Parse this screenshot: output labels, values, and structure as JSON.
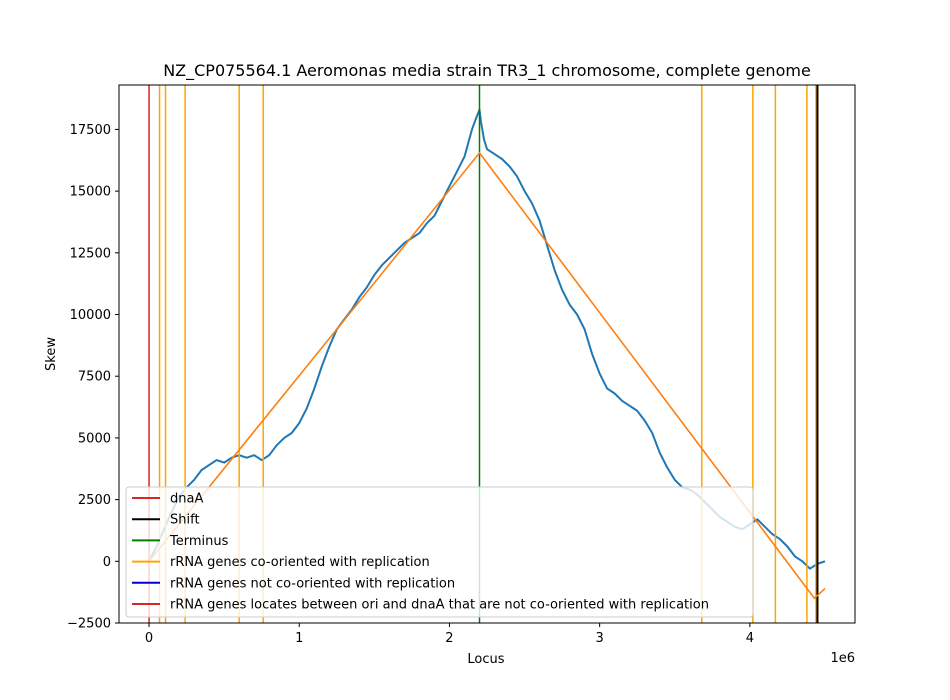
{
  "chart_data": {
    "type": "line",
    "title": "NZ_CP075564.1 Aeromonas media strain TR3_1 chromosome, complete genome",
    "xlabel": "Locus",
    "ylabel": "Skew",
    "x_offset_label": "1e6",
    "xlim": [
      -0.2,
      4.7
    ],
    "ylim": [
      -2500,
      19300
    ],
    "x_ticks": [
      0,
      1,
      2,
      3,
      4
    ],
    "x_tick_labels": [
      "0",
      "1",
      "2",
      "3",
      "4"
    ],
    "y_ticks": [
      -2500,
      0,
      2500,
      5000,
      7500,
      10000,
      12500,
      15000,
      17500
    ],
    "y_tick_labels": [
      "−2500",
      "0",
      "2500",
      "5000",
      "7500",
      "10000",
      "12500",
      "15000",
      "17500"
    ],
    "grid": false,
    "legend_position": "lower-left",
    "skew_series": {
      "color": "#1f77b4",
      "x": [
        0.0,
        0.05,
        0.1,
        0.15,
        0.2,
        0.25,
        0.3,
        0.35,
        0.4,
        0.45,
        0.5,
        0.55,
        0.6,
        0.65,
        0.7,
        0.75,
        0.8,
        0.85,
        0.9,
        0.95,
        1.0,
        1.05,
        1.1,
        1.15,
        1.2,
        1.25,
        1.3,
        1.35,
        1.4,
        1.45,
        1.5,
        1.55,
        1.6,
        1.65,
        1.7,
        1.75,
        1.8,
        1.85,
        1.9,
        1.95,
        2.0,
        2.05,
        2.1,
        2.15,
        2.18,
        2.2,
        2.21,
        2.23,
        2.25,
        2.3,
        2.35,
        2.4,
        2.45,
        2.5,
        2.55,
        2.6,
        2.65,
        2.7,
        2.75,
        2.8,
        2.85,
        2.9,
        2.95,
        3.0,
        3.05,
        3.1,
        3.15,
        3.2,
        3.25,
        3.3,
        3.35,
        3.4,
        3.45,
        3.5,
        3.55,
        3.6,
        3.65,
        3.7,
        3.75,
        3.8,
        3.85,
        3.9,
        3.95,
        4.0,
        4.05,
        4.1,
        4.15,
        4.2,
        4.25,
        4.3,
        4.35,
        4.4,
        4.45,
        4.5
      ],
      "y": [
        0,
        600,
        1300,
        2000,
        2600,
        3000,
        3300,
        3700,
        3900,
        4100,
        4000,
        4200,
        4300,
        4200,
        4300,
        4100,
        4300,
        4700,
        5000,
        5200,
        5600,
        6200,
        7000,
        7900,
        8700,
        9400,
        9800,
        10200,
        10700,
        11100,
        11600,
        12000,
        12300,
        12600,
        12900,
        13100,
        13300,
        13700,
        14000,
        14600,
        15200,
        15800,
        16400,
        17500,
        18000,
        18300,
        17800,
        17100,
        16700,
        16500,
        16300,
        16000,
        15600,
        15000,
        14500,
        13800,
        12800,
        11800,
        11000,
        10400,
        10000,
        9400,
        8400,
        7600,
        7000,
        6800,
        6500,
        6300,
        6100,
        5700,
        5200,
        4400,
        3800,
        3300,
        3000,
        2900,
        2700,
        2400,
        2100,
        1800,
        1600,
        1400,
        1300,
        1500,
        1700,
        1400,
        1100,
        900,
        600,
        200,
        0,
        -300,
        -100,
        0
      ]
    },
    "fit_series": {
      "color": "#ff7f0e",
      "x": [
        0.0,
        2.2,
        4.43,
        4.5
      ],
      "y": [
        0,
        16550,
        -1500,
        -1100
      ]
    },
    "vertical_lines": {
      "dnaA": {
        "x": [
          0.0
        ],
        "color": "#d62728"
      },
      "shift": {
        "x": [
          4.45
        ],
        "color": "#000000"
      },
      "terminus": {
        "x": [
          2.2
        ],
        "color": "#008000"
      },
      "rrna_co": {
        "x": [
          0.07,
          0.11,
          0.24,
          0.6,
          0.76,
          3.68,
          4.02,
          4.17,
          4.38,
          4.44
        ],
        "color": "#ffa500"
      }
    },
    "legend": [
      {
        "label": "dnaA",
        "color": "#d62728"
      },
      {
        "label": "Shift",
        "color": "#000000"
      },
      {
        "label": "Terminus",
        "color": "#008000"
      },
      {
        "label": "rRNA genes co-oriented with replication",
        "color": "#ffa500"
      },
      {
        "label": "rRNA genes not co-oriented with replication",
        "color": "#0000cd"
      },
      {
        "label": "rRNA genes locates between ori and dnaA that are not co-oriented with replication",
        "color": "#d62728"
      }
    ]
  }
}
